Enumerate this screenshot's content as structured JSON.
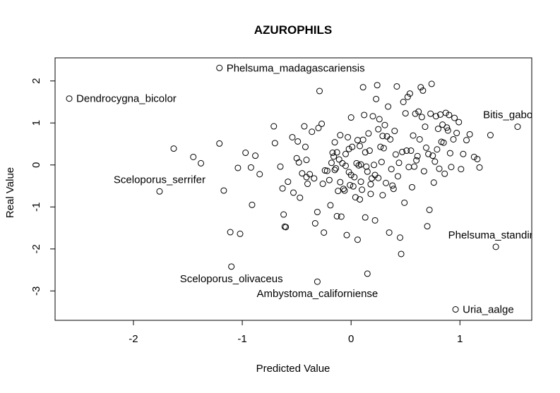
{
  "chart_data": {
    "type": "scatter",
    "title": "AZUROPHILS",
    "xlabel": "Predicted Value",
    "ylabel": "Real Value",
    "xlim": [
      -2.72,
      1.66
    ],
    "ylim": [
      -3.7,
      2.55
    ],
    "x_ticks": [
      -2,
      -1,
      0,
      1
    ],
    "y_ticks": [
      -3,
      -2,
      -1,
      0,
      1,
      2
    ],
    "grid": false,
    "labeled_points": [
      {
        "x": -2.59,
        "y": 1.58,
        "label": "Dendrocygna_bicolor",
        "side": "right"
      },
      {
        "x": -1.21,
        "y": 2.31,
        "label": "Phelsuma_madagascariensis",
        "side": "right"
      },
      {
        "x": -1.76,
        "y": -0.63,
        "label": "Sceloporus_serrifer",
        "side": "above"
      },
      {
        "x": 1.53,
        "y": 0.91,
        "label": "Bitis_gabonica",
        "side": "above"
      },
      {
        "x": 1.33,
        "y": -1.95,
        "label": "Phelsuma_standingi",
        "side": "above"
      },
      {
        "x": -1.1,
        "y": -2.42,
        "label": "Sceloporus_olivaceus",
        "side": "below"
      },
      {
        "x": -0.31,
        "y": -2.78,
        "label": "Ambystoma_californiense",
        "side": "below"
      },
      {
        "x": 0.96,
        "y": -3.44,
        "label": "Uria_aalge",
        "side": "right"
      }
    ],
    "points": [
      [
        -1.63,
        0.39
      ],
      [
        -1.45,
        0.19
      ],
      [
        -1.38,
        0.04
      ],
      [
        -1.21,
        0.51
      ],
      [
        -1.17,
        -0.61
      ],
      [
        -1.11,
        -1.6
      ],
      [
        -1.04,
        -0.07
      ],
      [
        -1.02,
        -1.64
      ],
      [
        -0.97,
        0.29
      ],
      [
        -0.92,
        -0.06
      ],
      [
        -0.91,
        -0.95
      ],
      [
        -0.88,
        0.22
      ],
      [
        -0.84,
        -0.22
      ],
      [
        -0.71,
        0.92
      ],
      [
        -0.7,
        0.52
      ],
      [
        -0.65,
        -0.04
      ],
      [
        -0.63,
        -0.56
      ],
      [
        -0.62,
        -1.18
      ],
      [
        -0.61,
        -1.47
      ],
      [
        -0.6,
        -1.48
      ],
      [
        -0.58,
        -0.4
      ],
      [
        -0.54,
        0.66
      ],
      [
        -0.53,
        -0.66
      ],
      [
        -0.5,
        0.16
      ],
      [
        -0.49,
        0.56
      ],
      [
        -0.48,
        0.06
      ],
      [
        -0.47,
        -0.78
      ],
      [
        -0.45,
        -0.2
      ],
      [
        -0.43,
        0.92
      ],
      [
        -0.42,
        0.43
      ],
      [
        -0.41,
        0.12
      ],
      [
        -0.41,
        -0.29
      ],
      [
        -0.4,
        -0.45
      ],
      [
        -0.38,
        -0.22
      ],
      [
        -0.36,
        0.79
      ],
      [
        -0.34,
        -0.32
      ],
      [
        -0.33,
        -1.39
      ],
      [
        -0.31,
        -1.12
      ],
      [
        -0.3,
        0.88
      ],
      [
        -0.29,
        1.76
      ],
      [
        -0.27,
        0.98
      ],
      [
        -0.26,
        -0.45
      ],
      [
        -0.25,
        -1.61
      ],
      [
        -0.24,
        -0.13
      ],
      [
        -0.22,
        -0.14
      ],
      [
        -0.2,
        -0.36
      ],
      [
        -0.19,
        -0.96
      ],
      [
        -0.18,
        0.05
      ],
      [
        -0.17,
        0.29
      ],
      [
        -0.16,
        0.2
      ],
      [
        -0.15,
        -0.12
      ],
      [
        -0.15,
        0.54
      ],
      [
        -0.14,
        -0.08
      ],
      [
        -0.13,
        0.3
      ],
      [
        -0.13,
        -1.22
      ],
      [
        -0.12,
        -0.62
      ],
      [
        -0.11,
        0.13
      ],
      [
        -0.1,
        0.71
      ],
      [
        -0.1,
        -0.41
      ],
      [
        -0.09,
        -1.23
      ],
      [
        -0.08,
        0.04
      ],
      [
        -0.07,
        -0.57
      ],
      [
        -0.06,
        -0.61
      ],
      [
        -0.05,
        -0.02
      ],
      [
        -0.05,
        0.26
      ],
      [
        -0.04,
        -1.67
      ],
      [
        -0.03,
        0.66
      ],
      [
        -0.02,
        0.38
      ],
      [
        -0.02,
        -0.17
      ],
      [
        -0.01,
        -0.48
      ],
      [
        0.0,
        1.13
      ],
      [
        0.0,
        -0.24
      ],
      [
        0.01,
        0.43
      ],
      [
        0.02,
        -0.51
      ],
      [
        0.03,
        -0.29
      ],
      [
        0.04,
        -0.77
      ],
      [
        0.05,
        0.04
      ],
      [
        0.06,
        -1.78
      ],
      [
        0.06,
        0.59
      ],
      [
        0.07,
        -0.01
      ],
      [
        0.08,
        -0.82
      ],
      [
        0.08,
        0.45
      ],
      [
        0.09,
        -0.4
      ],
      [
        0.09,
        0.01
      ],
      [
        0.1,
        -0.59
      ],
      [
        0.11,
        0.6
      ],
      [
        0.11,
        1.85
      ],
      [
        0.12,
        1.19
      ],
      [
        0.13,
        0.3
      ],
      [
        0.13,
        -1.25
      ],
      [
        0.14,
        -0.04
      ],
      [
        0.15,
        -2.59
      ],
      [
        0.15,
        -0.16
      ],
      [
        0.16,
        0.75
      ],
      [
        0.17,
        0.34
      ],
      [
        0.18,
        -0.46
      ],
      [
        0.18,
        -0.69
      ],
      [
        0.19,
        -0.32
      ],
      [
        0.2,
        1.16
      ],
      [
        0.21,
        0.0
      ],
      [
        0.22,
        -0.24
      ],
      [
        0.22,
        -1.32
      ],
      [
        0.23,
        1.57
      ],
      [
        0.24,
        1.9
      ],
      [
        0.25,
        0.85
      ],
      [
        0.25,
        -0.31
      ],
      [
        0.26,
        1.09
      ],
      [
        0.27,
        0.43
      ],
      [
        0.28,
        0.07
      ],
      [
        0.29,
        0.69
      ],
      [
        0.29,
        -0.72
      ],
      [
        0.3,
        0.4
      ],
      [
        0.31,
        0.95
      ],
      [
        0.32,
        -0.43
      ],
      [
        0.33,
        0.68
      ],
      [
        0.34,
        1.39
      ],
      [
        0.35,
        -1.61
      ],
      [
        0.36,
        0.61
      ],
      [
        0.37,
        -0.1
      ],
      [
        0.38,
        -0.49
      ],
      [
        0.39,
        -0.57
      ],
      [
        0.4,
        0.81
      ],
      [
        0.41,
        0.25
      ],
      [
        0.42,
        1.87
      ],
      [
        0.43,
        -0.27
      ],
      [
        0.44,
        0.05
      ],
      [
        0.45,
        -1.73
      ],
      [
        0.46,
        -2.12
      ],
      [
        0.47,
        0.31
      ],
      [
        0.48,
        1.5
      ],
      [
        0.49,
        -0.9
      ],
      [
        0.5,
        1.23
      ],
      [
        0.51,
        0.34
      ],
      [
        0.52,
        1.62
      ],
      [
        0.53,
        -0.05
      ],
      [
        0.54,
        1.7
      ],
      [
        0.55,
        0.34
      ],
      [
        0.56,
        -0.53
      ],
      [
        0.57,
        0.7
      ],
      [
        0.58,
        -0.04
      ],
      [
        0.59,
        1.22
      ],
      [
        0.6,
        0.11
      ],
      [
        0.61,
        0.21
      ],
      [
        0.62,
        1.27
      ],
      [
        0.63,
        0.61
      ],
      [
        0.64,
        1.85
      ],
      [
        0.65,
        1.14
      ],
      [
        0.66,
        1.77
      ],
      [
        0.67,
        -0.15
      ],
      [
        0.68,
        0.91
      ],
      [
        0.69,
        0.41
      ],
      [
        0.7,
        -1.46
      ],
      [
        0.71,
        0.26
      ],
      [
        0.72,
        -1.07
      ],
      [
        0.73,
        1.22
      ],
      [
        0.74,
        1.93
      ],
      [
        0.75,
        0.22
      ],
      [
        0.76,
        -0.42
      ],
      [
        0.77,
        0.08
      ],
      [
        0.78,
        1.16
      ],
      [
        0.79,
        0.37
      ],
      [
        0.8,
        0.86
      ],
      [
        0.81,
        -0.09
      ],
      [
        0.82,
        1.2
      ],
      [
        0.83,
        0.55
      ],
      [
        0.84,
        0.96
      ],
      [
        0.85,
        0.53
      ],
      [
        0.86,
        -0.21
      ],
      [
        0.87,
        1.24
      ],
      [
        0.88,
        0.89
      ],
      [
        0.89,
        0.82
      ],
      [
        0.9,
        1.19
      ],
      [
        0.91,
        0.28
      ],
      [
        0.92,
        -0.05
      ],
      [
        0.94,
        0.61
      ],
      [
        0.95,
        1.12
      ],
      [
        0.97,
        0.76
      ],
      [
        0.99,
        1.02
      ],
      [
        1.01,
        -0.1
      ],
      [
        1.03,
        0.26
      ],
      [
        1.06,
        0.59
      ],
      [
        1.09,
        0.73
      ],
      [
        1.13,
        0.19
      ],
      [
        1.16,
        0.14
      ],
      [
        1.18,
        -0.06
      ],
      [
        1.28,
        0.71
      ]
    ]
  }
}
